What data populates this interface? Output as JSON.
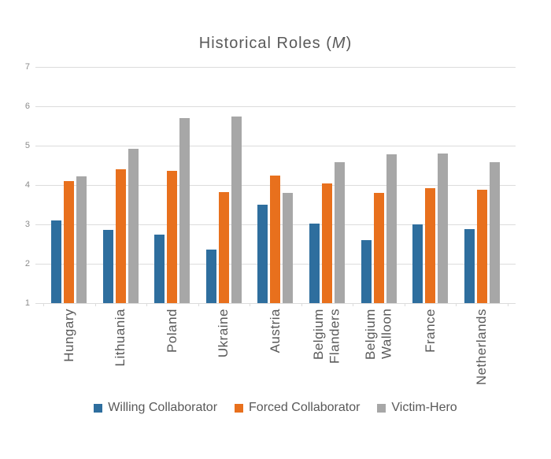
{
  "title": {
    "prefix": "Historical Roles (",
    "m": "M",
    "suffix": ")"
  },
  "colors": {
    "willing_collaborator": "#2e6e9e",
    "forced_collaborator": "#e8701d",
    "victim_hero": "#a7a7a7",
    "gridline": "#dcdcdc",
    "title_text": "#595959",
    "tick_text": "#8c8c8c"
  },
  "chart_data": {
    "type": "bar",
    "title": "Historical Roles (M)",
    "xlabel": "",
    "ylabel": "",
    "ylim": [
      1,
      7
    ],
    "y_ticks": [
      1,
      2,
      3,
      4,
      5,
      6,
      7
    ],
    "grid": true,
    "legend_position": "bottom",
    "categories": [
      "Hungary",
      "Lithuania",
      "Poland",
      "Ukraine",
      "Austria",
      "Belgium Flanders",
      "Belgium Walloon",
      "France",
      "Netherlands"
    ],
    "series": [
      {
        "name": "Willing Collaborator",
        "color": "#2e6e9e",
        "values": [
          3.1,
          2.87,
          2.75,
          2.36,
          3.5,
          3.02,
          2.6,
          3.0,
          2.88
        ]
      },
      {
        "name": "Forced Collaborator",
        "color": "#e8701d",
        "values": [
          4.1,
          4.4,
          4.37,
          3.83,
          4.24,
          4.04,
          3.81,
          3.92,
          3.89
        ]
      },
      {
        "name": "Victim-Hero",
        "color": "#a7a7a7",
        "values": [
          4.22,
          4.92,
          5.7,
          5.75,
          3.8,
          4.58,
          4.78,
          4.81,
          4.58
        ]
      }
    ]
  }
}
